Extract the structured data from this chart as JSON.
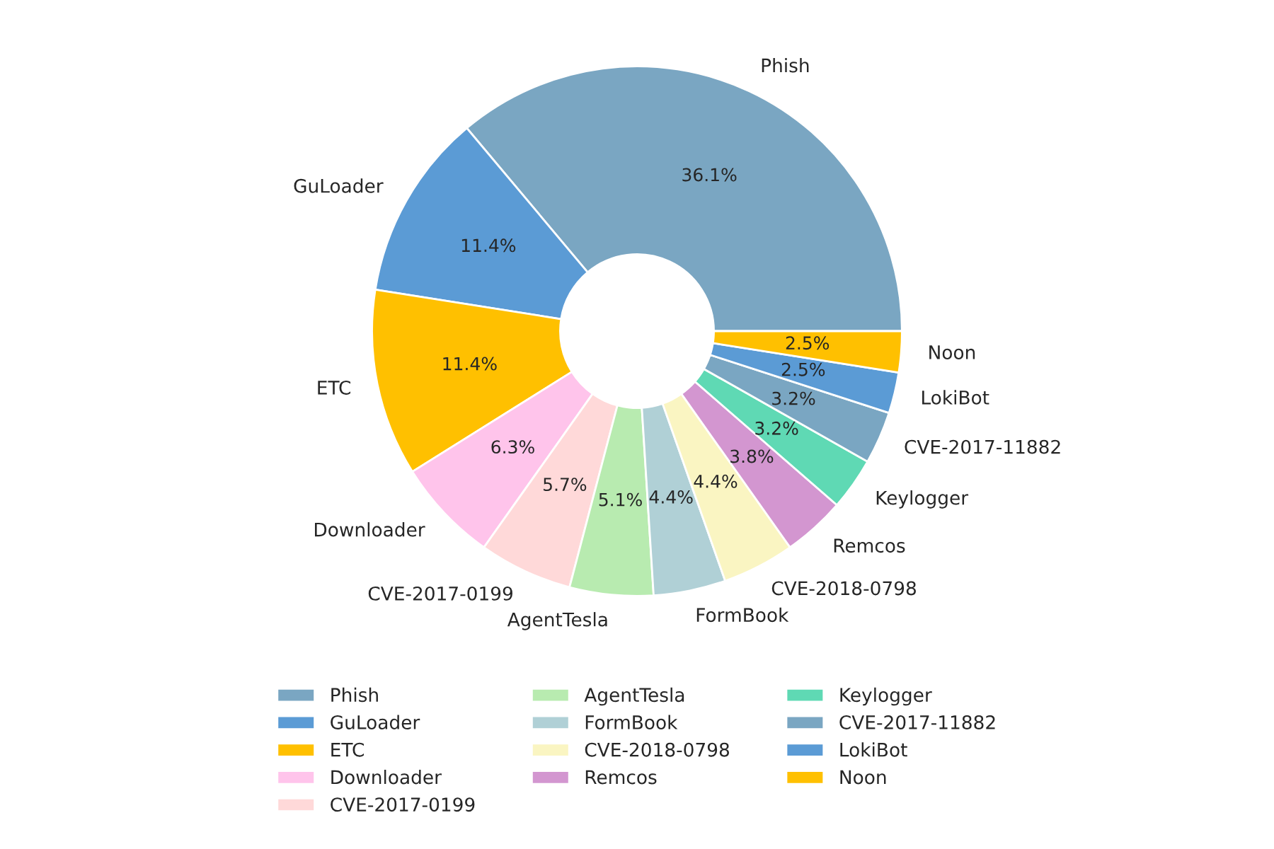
{
  "chart_data": {
    "type": "donut",
    "categories": [
      "Phish",
      "GuLoader",
      "ETC",
      "Downloader",
      "CVE-2017-0199",
      "AgentTesla",
      "FormBook",
      "CVE-2018-0798",
      "Remcos",
      "Keylogger",
      "CVE-2017-11882",
      "LokiBot",
      "Noon"
    ],
    "values": [
      36.1,
      11.4,
      11.4,
      6.3,
      5.7,
      5.1,
      4.4,
      4.4,
      3.8,
      3.2,
      3.2,
      2.5,
      2.5
    ],
    "value_labels": [
      "36.1%",
      "11.4%",
      "11.4%",
      "6.3%",
      "5.7%",
      "5.1%",
      "4.4%",
      "4.4%",
      "3.8%",
      "3.2%",
      "3.2%",
      "2.5%",
      "2.5%"
    ],
    "colors": [
      "#7aa6c2",
      "#5b9bd5",
      "#ffc000",
      "#ffc4eb",
      "#ffd9d9",
      "#b8ebb0",
      "#b0d0d6",
      "#faf5c2",
      "#d396d0",
      "#5fd9b4",
      "#7aa6c2",
      "#5b9bd5",
      "#ffc000"
    ],
    "legend": "bottom"
  }
}
